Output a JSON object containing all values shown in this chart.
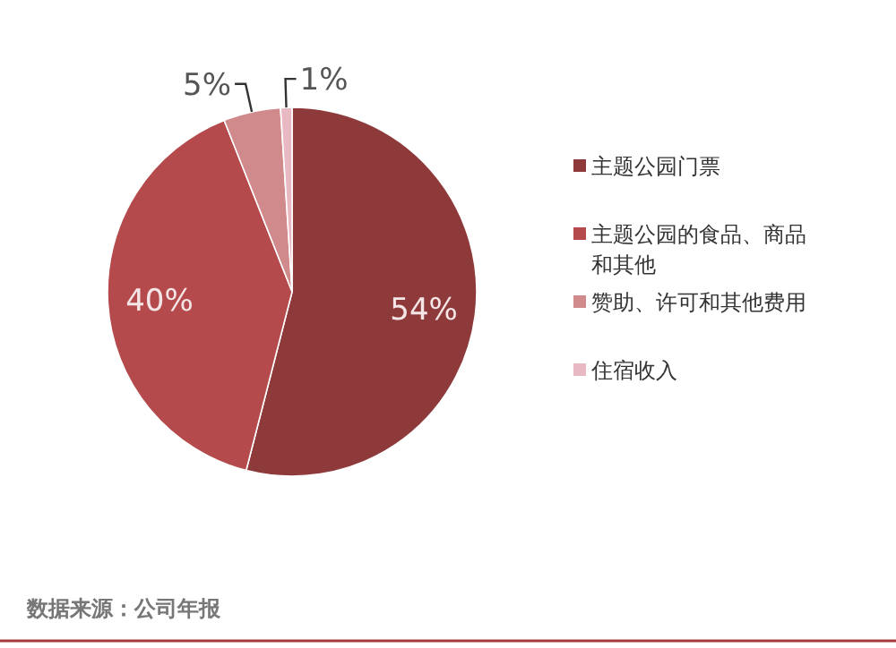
{
  "chart_data": {
    "type": "pie",
    "categories": [
      "主题公园门票",
      "主题公园的食品、商品和其他",
      "赞助、许可和其他费用",
      "住宿收入"
    ],
    "values": [
      54,
      40,
      5,
      1
    ],
    "colors": [
      "#8e3a3b",
      "#b44a4b",
      "#d08a8b",
      "#e8b9c2"
    ],
    "value_labels": [
      "54%",
      "40%",
      "5%",
      "1%"
    ],
    "legend": "right",
    "annotations": [
      "数据来源：公司年报"
    ]
  }
}
